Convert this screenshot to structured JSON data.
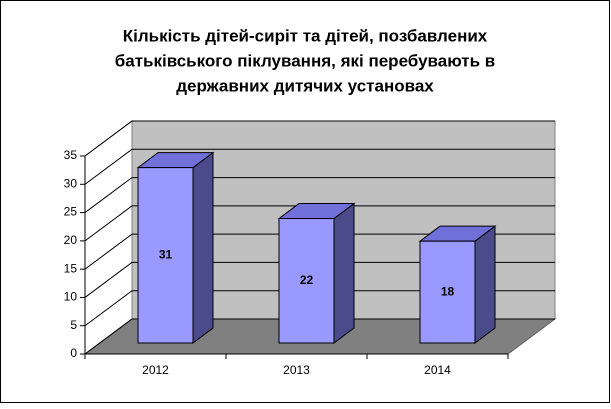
{
  "chart_data": {
    "type": "bar3d",
    "title": [
      "Кількість дітей-сиріт та дітей, позбавлених",
      "батьківського піклування, які перебувають в",
      "державних дитячих установах"
    ],
    "categories": [
      "2012",
      "2013",
      "2014"
    ],
    "values": [
      31,
      22,
      18
    ],
    "color": "#9999ff",
    "side_color": "#4b4b8c",
    "top_color": "#7070d8",
    "ylim": [
      0,
      35
    ],
    "yticks": [
      0,
      5,
      10,
      15,
      20,
      25,
      30,
      35
    ],
    "grid": true
  }
}
